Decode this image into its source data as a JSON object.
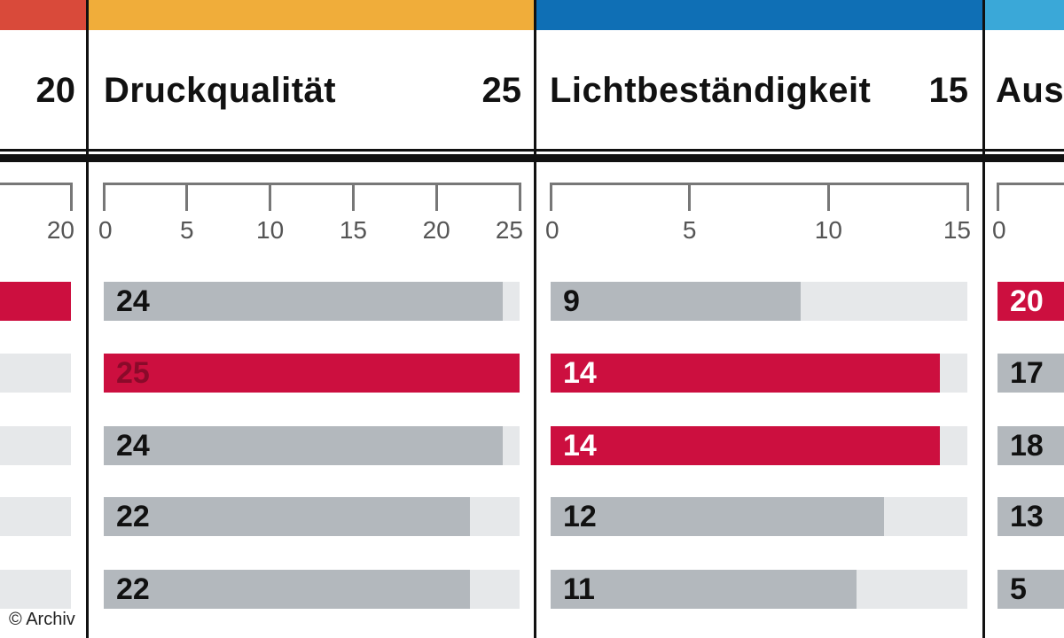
{
  "colors": {
    "red": "#d94a3a",
    "orange": "#f0ad3a",
    "blue": "#0f6fb5",
    "teal": "#3aa8d8",
    "bar_default": "#b3b8bd",
    "bar_best": "#cc0f3f",
    "track": "#e6e8ea"
  },
  "copyright": "© Archiv",
  "chart_data": [
    {
      "type": "bar",
      "orientation": "horizontal",
      "title": "",
      "max_label": "20",
      "xlim": [
        0,
        20
      ],
      "ticks": [],
      "tick_labels": [
        "20"
      ],
      "values": [
        20,
        null,
        null,
        null,
        null
      ],
      "value_labels": [
        "",
        "",
        "",
        "",
        ""
      ],
      "highlight": [
        true,
        false,
        false,
        false,
        false
      ],
      "partial": true
    },
    {
      "type": "bar",
      "orientation": "horizontal",
      "title": "Druckqualität",
      "max_label": "25",
      "xlim": [
        0,
        25
      ],
      "ticks": [
        0,
        5,
        10,
        15,
        20,
        25
      ],
      "tick_labels": [
        "0",
        "5",
        "10",
        "15",
        "20",
        "25"
      ],
      "values": [
        24,
        25,
        24,
        22,
        22
      ],
      "value_labels": [
        "24",
        "25",
        "24",
        "22",
        "22"
      ],
      "highlight": [
        false,
        true,
        false,
        false,
        false
      ]
    },
    {
      "type": "bar",
      "orientation": "horizontal",
      "title": "Lichtbeständigkeit",
      "max_label": "15",
      "xlim": [
        0,
        15
      ],
      "ticks": [
        0,
        5,
        10,
        15
      ],
      "tick_labels": [
        "0",
        "5",
        "10",
        "15"
      ],
      "values": [
        9,
        14,
        14,
        12,
        11
      ],
      "value_labels": [
        "9",
        "14",
        "14",
        "12",
        "11"
      ],
      "highlight": [
        false,
        true,
        true,
        false,
        false
      ]
    },
    {
      "type": "bar",
      "orientation": "horizontal",
      "title": "Auss",
      "max_label": "",
      "xlim": [
        0,
        20
      ],
      "ticks": [
        0
      ],
      "tick_labels": [
        "0"
      ],
      "values": [
        20,
        17,
        18,
        13,
        5
      ],
      "value_labels": [
        "20",
        "17",
        "18",
        "13",
        "5"
      ],
      "highlight": [
        true,
        false,
        false,
        false,
        false
      ],
      "partial": true
    }
  ]
}
